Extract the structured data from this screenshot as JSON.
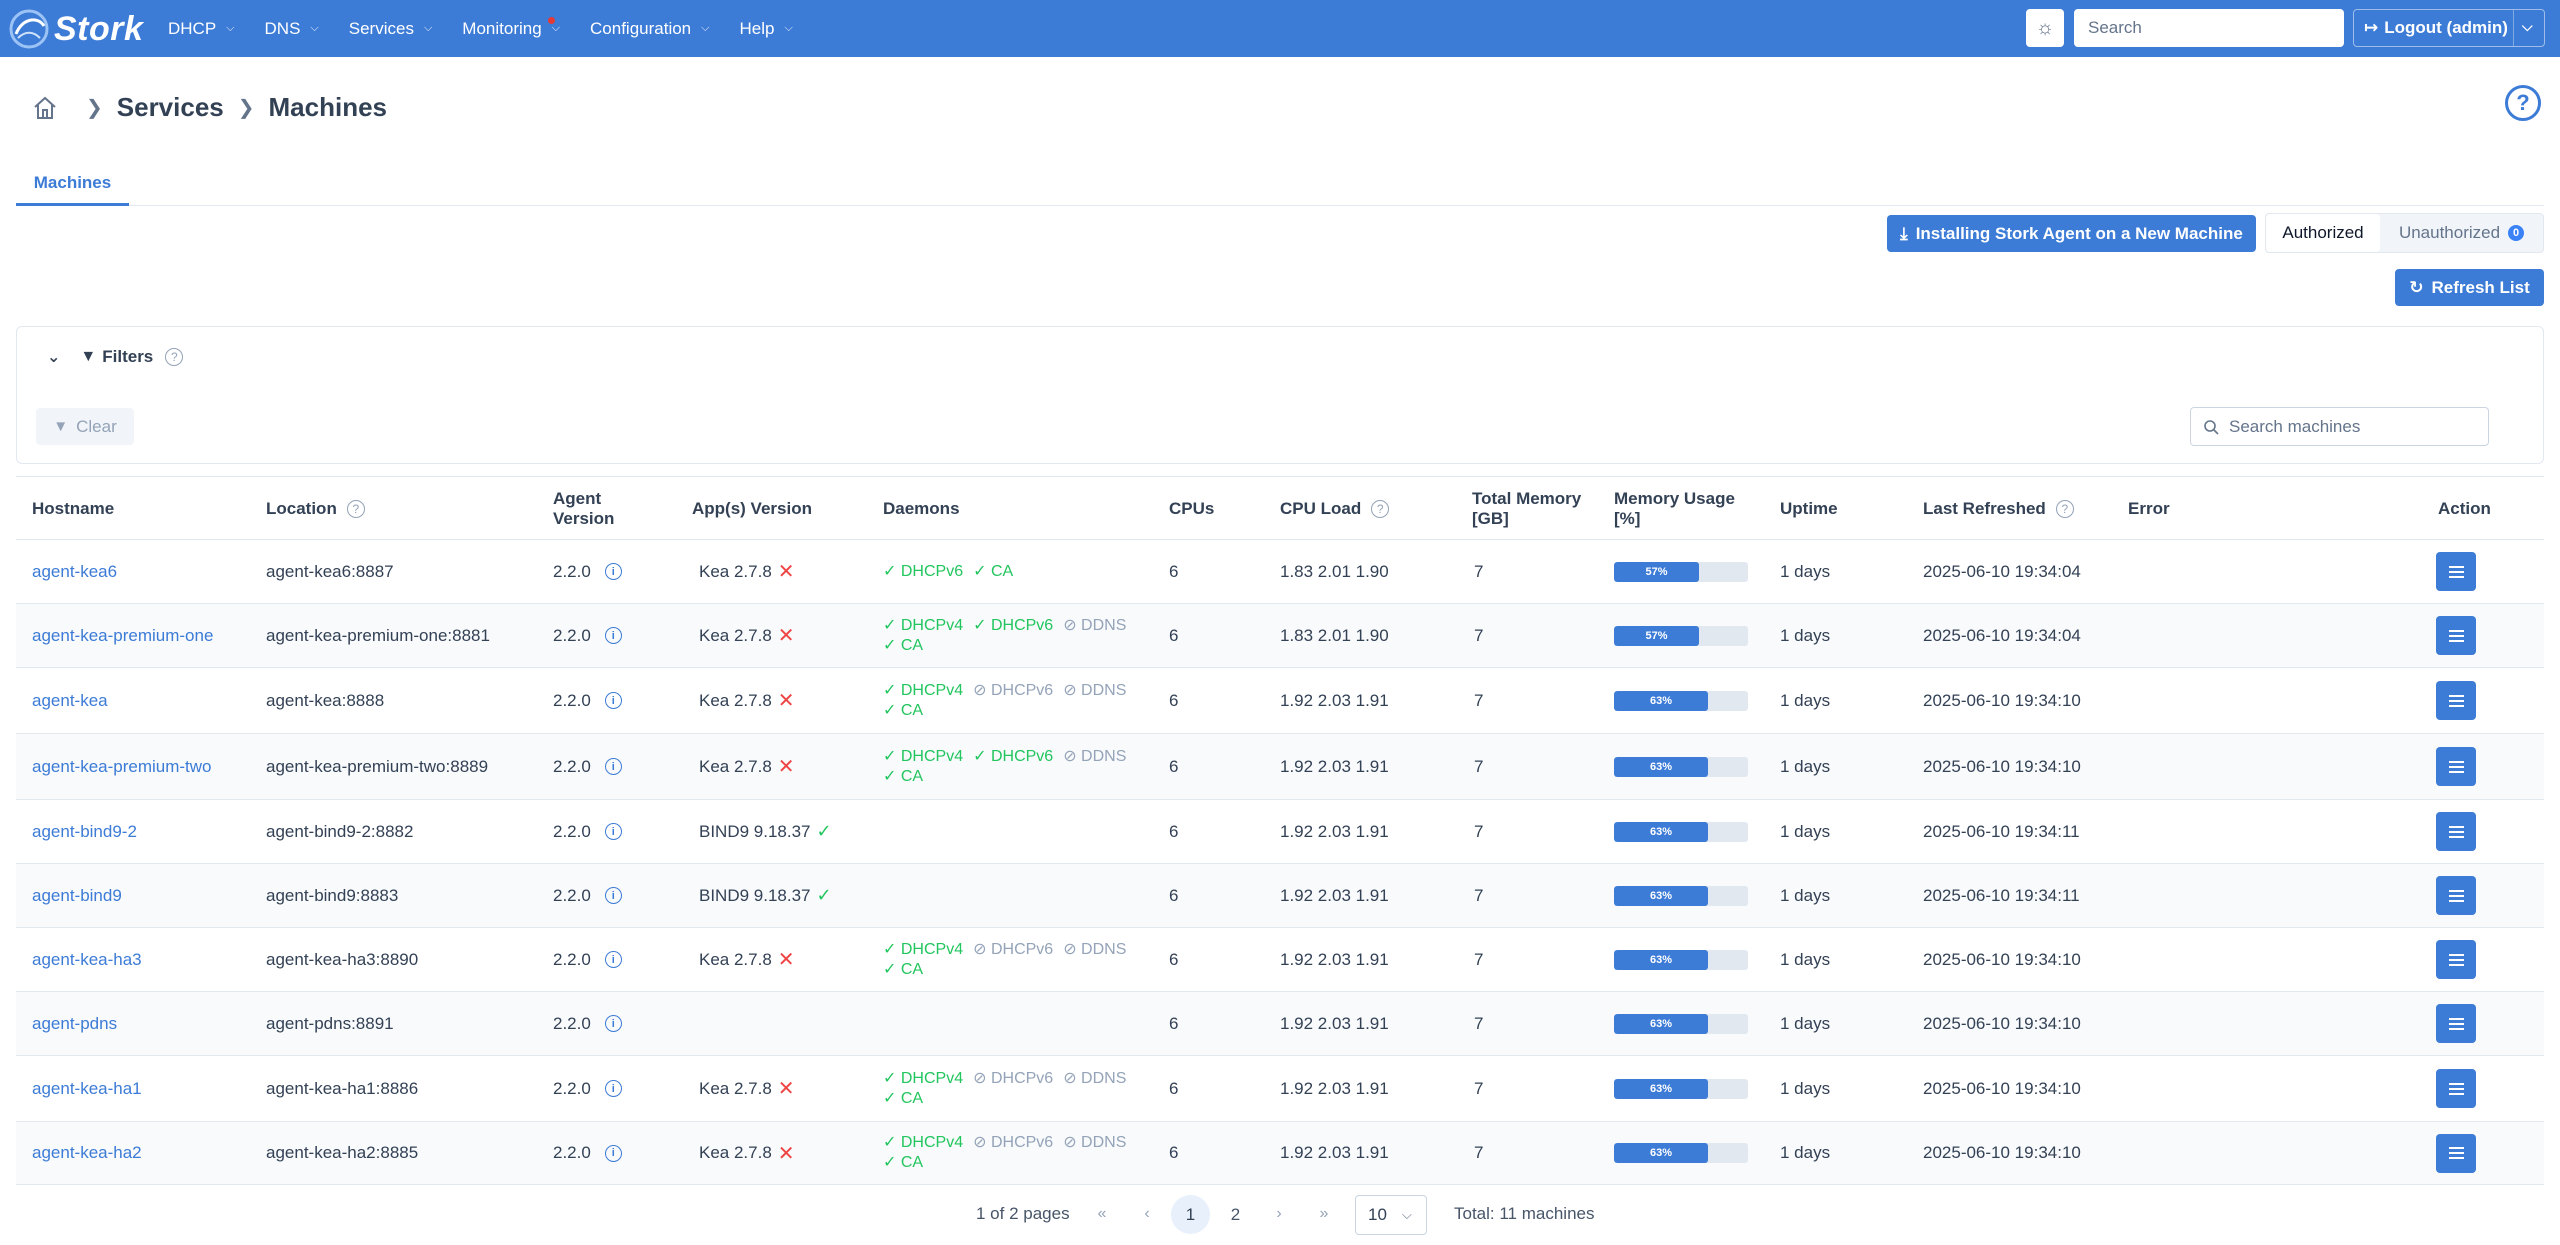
{
  "app": {
    "name": "Stork"
  },
  "nav": [
    {
      "label": "DHCP"
    },
    {
      "label": "DNS"
    },
    {
      "label": "Services"
    },
    {
      "label": "Monitoring"
    },
    {
      "label": "Configuration"
    },
    {
      "label": "Help"
    }
  ],
  "header": {
    "search_placeholder": "Search",
    "logout_label": "Logout (admin)"
  },
  "breadcrumb": {
    "section": "Services",
    "page": "Machines"
  },
  "tabs": [
    {
      "label": "Machines"
    }
  ],
  "actions": {
    "install_label": "Installing Stork Agent on a New Machine",
    "authorized_label": "Authorized",
    "unauthorized_label": "Unauthorized",
    "unauthorized_count": "0",
    "refresh_label": "Refresh List"
  },
  "filters": {
    "title": "Filters",
    "clear_label": "Clear",
    "search_placeholder": "Search machines"
  },
  "table": {
    "columns": {
      "hostname": "Hostname",
      "location": "Location",
      "agent_version": "Agent Version",
      "app_version": "App(s) Version",
      "daemons": "Daemons",
      "cpus": "CPUs",
      "cpu_load": "CPU Load",
      "total_memory": "Total Memory [GB]",
      "memory_usage": "Memory Usage [%]",
      "uptime": "Uptime",
      "last_refreshed": "Last Refreshed",
      "error": "Error",
      "action": "Action"
    },
    "rows": [
      {
        "hostname": "agent-kea6",
        "location": "agent-kea6:8887",
        "agent_version": "2.2.0",
        "app_version": "Kea 2.7.8",
        "app_ok": false,
        "daemons": [
          {
            "label": "DHCPv6",
            "on": true
          },
          {
            "label": "CA",
            "on": true
          }
        ],
        "cpus": "6",
        "cpu_load": "1.83 2.01 1.90",
        "total_memory": "7",
        "memory_usage": 57,
        "memory_label": "57%",
        "uptime": "1 days",
        "last_refreshed": "2025-06-10 19:34:04",
        "error": ""
      },
      {
        "hostname": "agent-kea-premium-one",
        "location": "agent-kea-premium-one:8881",
        "agent_version": "2.2.0",
        "app_version": "Kea 2.7.8",
        "app_ok": false,
        "daemons": [
          {
            "label": "DHCPv4",
            "on": true
          },
          {
            "label": "DHCPv6",
            "on": true
          },
          {
            "label": "DDNS",
            "on": false
          },
          {
            "label": "CA",
            "on": true
          }
        ],
        "cpus": "6",
        "cpu_load": "1.83 2.01 1.90",
        "total_memory": "7",
        "memory_usage": 57,
        "memory_label": "57%",
        "uptime": "1 days",
        "last_refreshed": "2025-06-10 19:34:04",
        "error": ""
      },
      {
        "hostname": "agent-kea",
        "location": "agent-kea:8888",
        "agent_version": "2.2.0",
        "app_version": "Kea 2.7.8",
        "app_ok": false,
        "daemons": [
          {
            "label": "DHCPv4",
            "on": true
          },
          {
            "label": "DHCPv6",
            "on": false
          },
          {
            "label": "DDNS",
            "on": false
          },
          {
            "label": "CA",
            "on": true
          }
        ],
        "cpus": "6",
        "cpu_load": "1.92 2.03 1.91",
        "total_memory": "7",
        "memory_usage": 63,
        "memory_label": "63%",
        "uptime": "1 days",
        "last_refreshed": "2025-06-10 19:34:10",
        "error": ""
      },
      {
        "hostname": "agent-kea-premium-two",
        "location": "agent-kea-premium-two:8889",
        "agent_version": "2.2.0",
        "app_version": "Kea 2.7.8",
        "app_ok": false,
        "daemons": [
          {
            "label": "DHCPv4",
            "on": true
          },
          {
            "label": "DHCPv6",
            "on": true
          },
          {
            "label": "DDNS",
            "on": false
          },
          {
            "label": "CA",
            "on": true
          }
        ],
        "cpus": "6",
        "cpu_load": "1.92 2.03 1.91",
        "total_memory": "7",
        "memory_usage": 63,
        "memory_label": "63%",
        "uptime": "1 days",
        "last_refreshed": "2025-06-10 19:34:10",
        "error": ""
      },
      {
        "hostname": "agent-bind9-2",
        "location": "agent-bind9-2:8882",
        "agent_version": "2.2.0",
        "app_version": "BIND9 9.18.37",
        "app_ok": true,
        "daemons": [],
        "cpus": "6",
        "cpu_load": "1.92 2.03 1.91",
        "total_memory": "7",
        "memory_usage": 63,
        "memory_label": "63%",
        "uptime": "1 days",
        "last_refreshed": "2025-06-10 19:34:11",
        "error": ""
      },
      {
        "hostname": "agent-bind9",
        "location": "agent-bind9:8883",
        "agent_version": "2.2.0",
        "app_version": "BIND9 9.18.37",
        "app_ok": true,
        "daemons": [],
        "cpus": "6",
        "cpu_load": "1.92 2.03 1.91",
        "total_memory": "7",
        "memory_usage": 63,
        "memory_label": "63%",
        "uptime": "1 days",
        "last_refreshed": "2025-06-10 19:34:11",
        "error": ""
      },
      {
        "hostname": "agent-kea-ha3",
        "location": "agent-kea-ha3:8890",
        "agent_version": "2.2.0",
        "app_version": "Kea 2.7.8",
        "app_ok": false,
        "daemons": [
          {
            "label": "DHCPv4",
            "on": true
          },
          {
            "label": "DHCPv6",
            "on": false
          },
          {
            "label": "DDNS",
            "on": false
          },
          {
            "label": "CA",
            "on": true
          }
        ],
        "cpus": "6",
        "cpu_load": "1.92 2.03 1.91",
        "total_memory": "7",
        "memory_usage": 63,
        "memory_label": "63%",
        "uptime": "1 days",
        "last_refreshed": "2025-06-10 19:34:10",
        "error": ""
      },
      {
        "hostname": "agent-pdns",
        "location": "agent-pdns:8891",
        "agent_version": "2.2.0",
        "app_version": "",
        "app_ok": null,
        "daemons": [],
        "cpus": "6",
        "cpu_load": "1.92 2.03 1.91",
        "total_memory": "7",
        "memory_usage": 63,
        "memory_label": "63%",
        "uptime": "1 days",
        "last_refreshed": "2025-06-10 19:34:10",
        "error": ""
      },
      {
        "hostname": "agent-kea-ha1",
        "location": "agent-kea-ha1:8886",
        "agent_version": "2.2.0",
        "app_version": "Kea 2.7.8",
        "app_ok": false,
        "daemons": [
          {
            "label": "DHCPv4",
            "on": true
          },
          {
            "label": "DHCPv6",
            "on": false
          },
          {
            "label": "DDNS",
            "on": false
          },
          {
            "label": "CA",
            "on": true
          }
        ],
        "cpus": "6",
        "cpu_load": "1.92 2.03 1.91",
        "total_memory": "7",
        "memory_usage": 63,
        "memory_label": "63%",
        "uptime": "1 days",
        "last_refreshed": "2025-06-10 19:34:10",
        "error": ""
      },
      {
        "hostname": "agent-kea-ha2",
        "location": "agent-kea-ha2:8885",
        "agent_version": "2.2.0",
        "app_version": "Kea 2.7.8",
        "app_ok": false,
        "daemons": [
          {
            "label": "DHCPv4",
            "on": true
          },
          {
            "label": "DHCPv6",
            "on": false
          },
          {
            "label": "DDNS",
            "on": false
          },
          {
            "label": "CA",
            "on": true
          }
        ],
        "cpus": "6",
        "cpu_load": "1.92 2.03 1.91",
        "total_memory": "7",
        "memory_usage": 63,
        "memory_label": "63%",
        "uptime": "1 days",
        "last_refreshed": "2025-06-10 19:34:10",
        "error": ""
      }
    ]
  },
  "paginator": {
    "page_report": "1 of 2 pages",
    "pages": [
      "1",
      "2"
    ],
    "current_page": "1",
    "rows_per_page": "10",
    "total": "Total: 11 machines"
  },
  "colors": {
    "primary": "#3c7bd6",
    "success": "#22c55e",
    "danger": "#ef4444",
    "muted": "#94a3b8"
  }
}
